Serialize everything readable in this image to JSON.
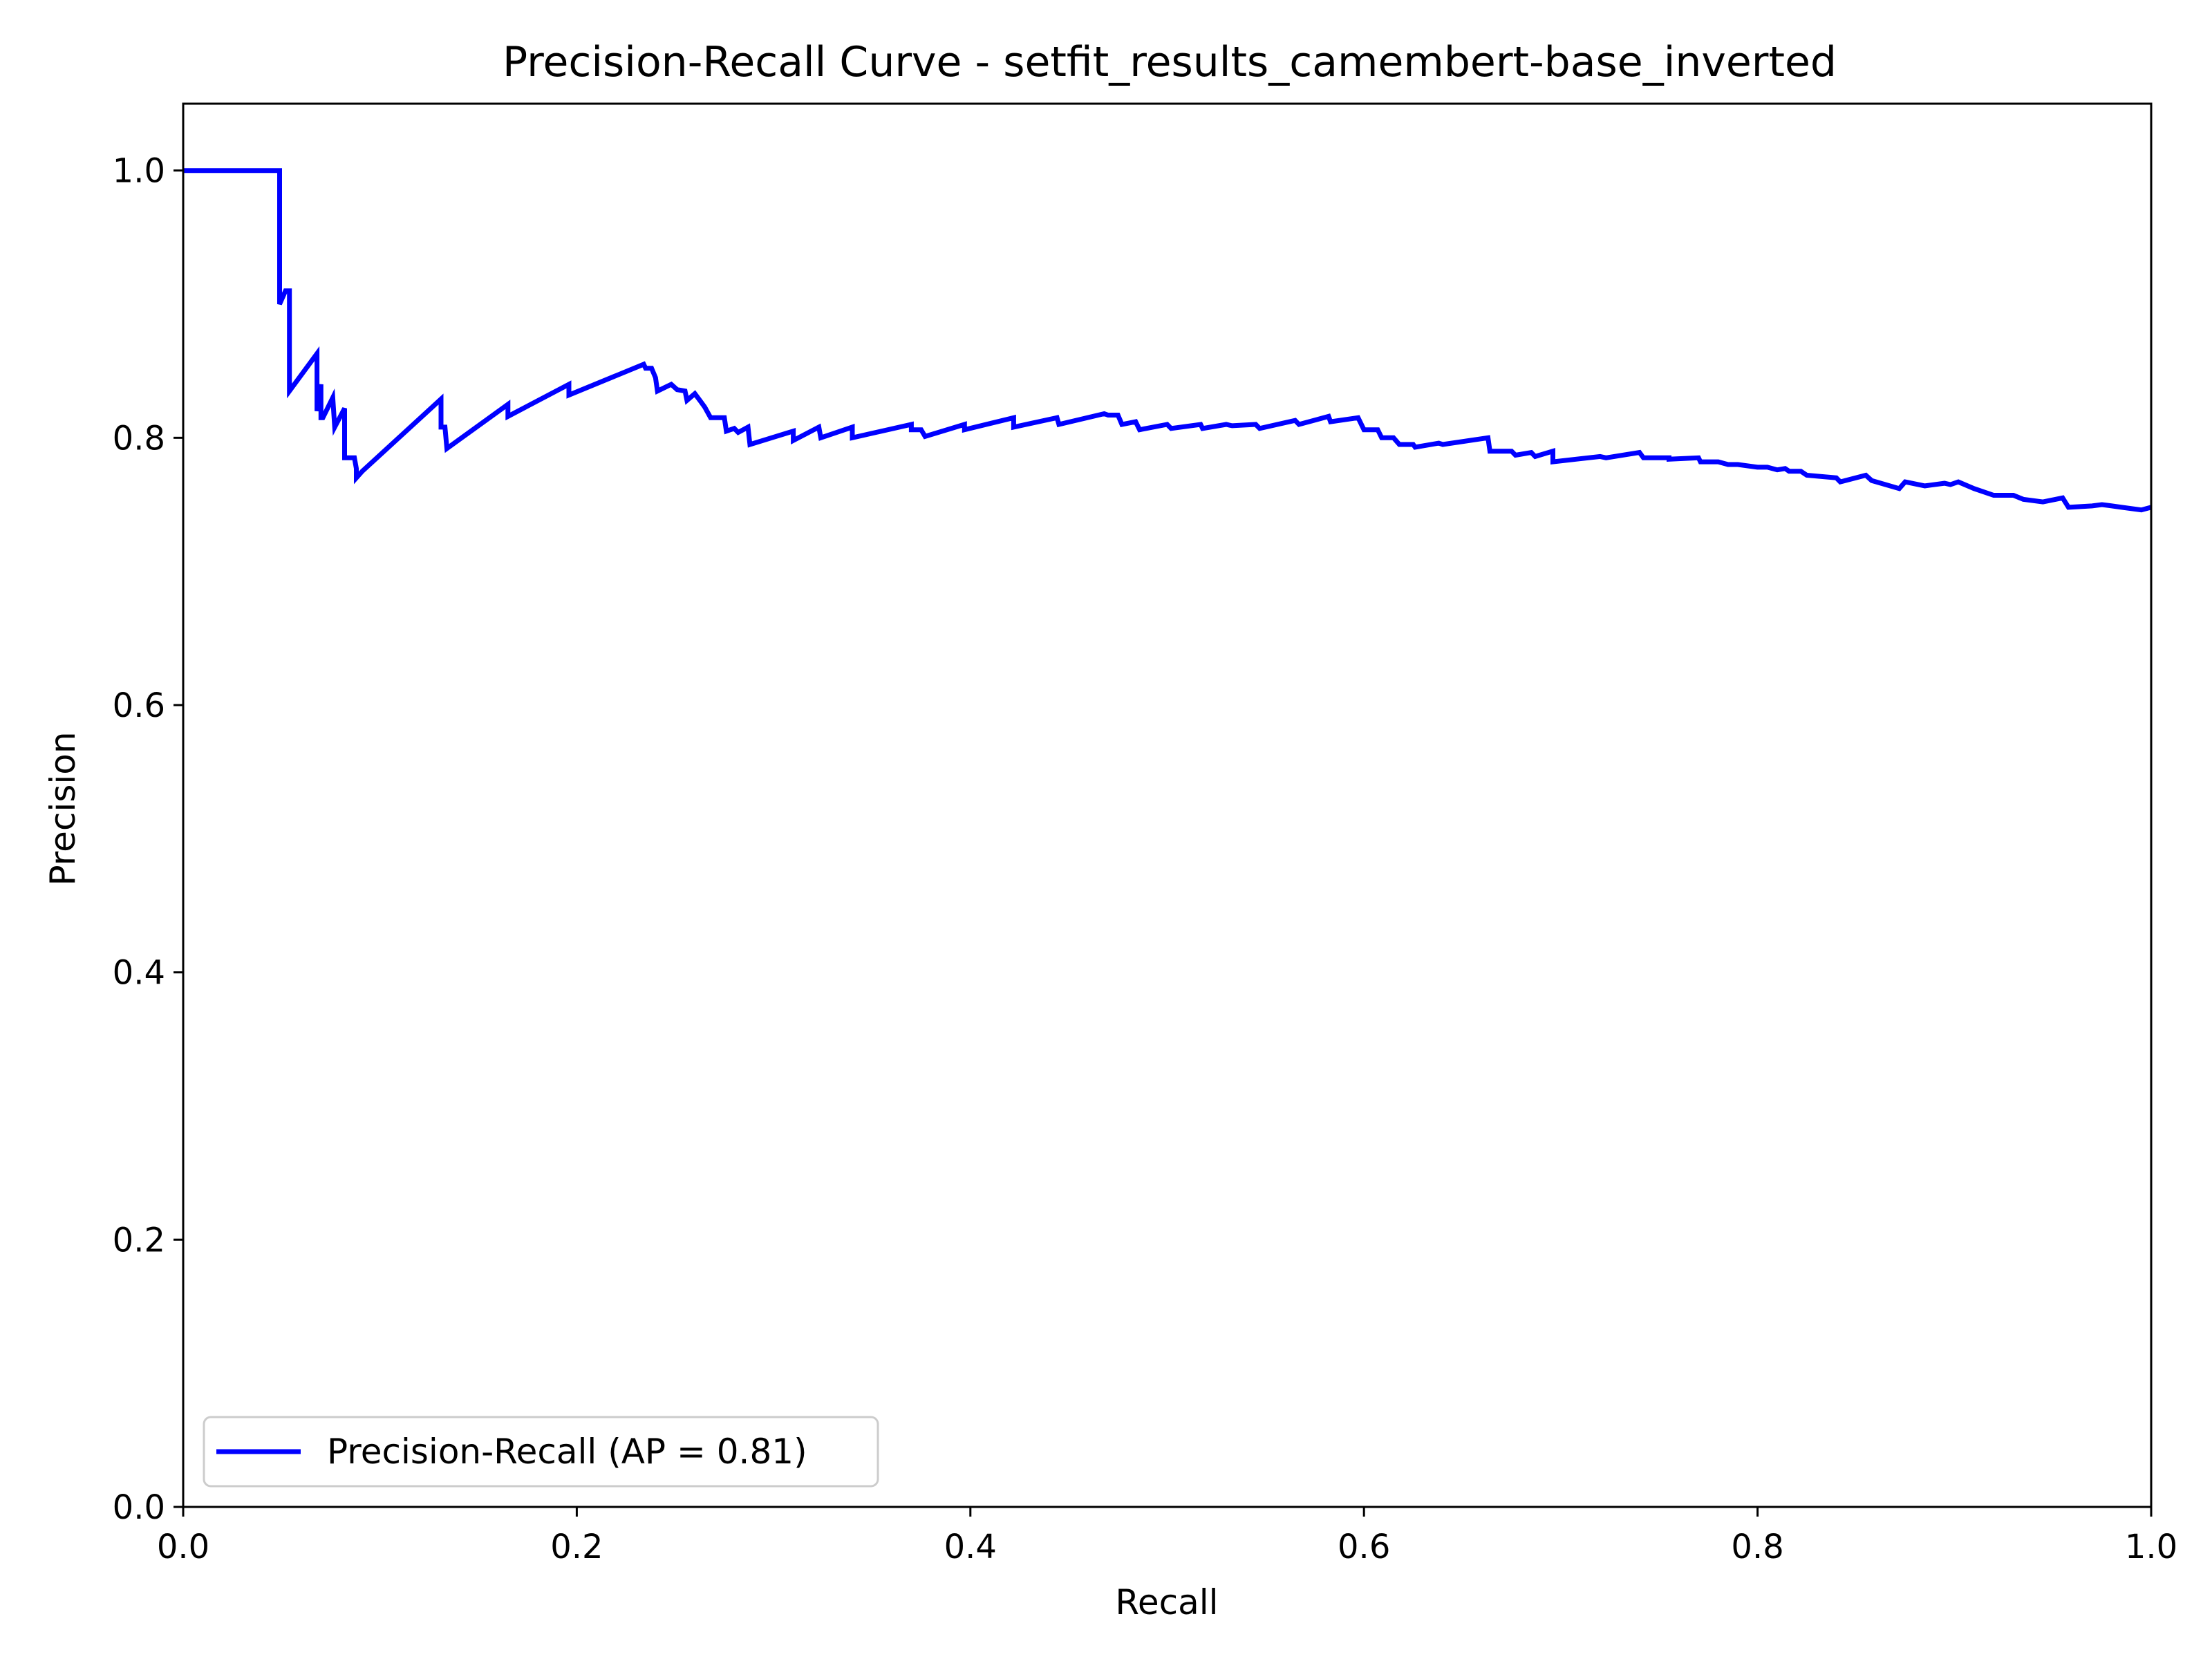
{
  "chart_data": {
    "type": "line",
    "title": "Precision-Recall Curve - setfit_results_camembert-base_inverted",
    "xlabel": "Recall",
    "ylabel": "Precision",
    "xlim": [
      0.0,
      1.0
    ],
    "ylim": [
      0.0,
      1.05
    ],
    "x_ticks": [
      0.0,
      0.2,
      0.4,
      0.6,
      0.8,
      1.0
    ],
    "x_tick_labels": [
      "0.0",
      "0.2",
      "0.4",
      "0.6",
      "0.8",
      "1.0"
    ],
    "y_ticks": [
      0.0,
      0.2,
      0.4,
      0.6,
      0.8,
      1.0
    ],
    "y_tick_labels": [
      "0.0",
      "0.2",
      "0.4",
      "0.6",
      "0.8",
      "1.0"
    ],
    "grid": false,
    "legend_position": "lower-left",
    "series": [
      {
        "name": "Precision-Recall (AP = 0.81)",
        "color": "#0000ff",
        "x": [
          0.0,
          0.049,
          0.049,
          0.052,
          0.054,
          0.054,
          0.068,
          0.068,
          0.07,
          0.07,
          0.071,
          0.076,
          0.077,
          0.082,
          0.082,
          0.087,
          0.088,
          0.088,
          0.091,
          0.131,
          0.131,
          0.133,
          0.134,
          0.165,
          0.165,
          0.196,
          0.196,
          0.234,
          0.235,
          0.238,
          0.24,
          0.241,
          0.248,
          0.251,
          0.255,
          0.256,
          0.26,
          0.263,
          0.265,
          0.268,
          0.275,
          0.276,
          0.28,
          0.282,
          0.287,
          0.288,
          0.31,
          0.31,
          0.323,
          0.324,
          0.34,
          0.34,
          0.37,
          0.37,
          0.375,
          0.377,
          0.397,
          0.397,
          0.422,
          0.422,
          0.444,
          0.445,
          0.468,
          0.47,
          0.475,
          0.477,
          0.484,
          0.486,
          0.5,
          0.502,
          0.517,
          0.518,
          0.53,
          0.533,
          0.545,
          0.547,
          0.565,
          0.567,
          0.582,
          0.583,
          0.597,
          0.6,
          0.607,
          0.609,
          0.615,
          0.618,
          0.625,
          0.626,
          0.638,
          0.64,
          0.663,
          0.664,
          0.675,
          0.677,
          0.685,
          0.687,
          0.696,
          0.696,
          0.72,
          0.723,
          0.74,
          0.742,
          0.755,
          0.755,
          0.77,
          0.771,
          0.78,
          0.785,
          0.79,
          0.8,
          0.805,
          0.81,
          0.814,
          0.816,
          0.822,
          0.825,
          0.84,
          0.842,
          0.855,
          0.858,
          0.872,
          0.875,
          0.885,
          0.895,
          0.898,
          0.902,
          0.91,
          0.92,
          0.93,
          0.935,
          0.945,
          0.955,
          0.958,
          0.97,
          0.975,
          0.98,
          0.985,
          0.995,
          1.0
        ],
        "y": [
          1.0,
          1.0,
          0.9,
          0.91,
          0.91,
          0.835,
          0.863,
          0.82,
          0.84,
          0.815,
          0.815,
          0.83,
          0.808,
          0.822,
          0.785,
          0.785,
          0.777,
          0.77,
          0.775,
          0.829,
          0.808,
          0.808,
          0.792,
          0.825,
          0.816,
          0.84,
          0.832,
          0.855,
          0.852,
          0.852,
          0.845,
          0.835,
          0.84,
          0.836,
          0.835,
          0.828,
          0.833,
          0.827,
          0.823,
          0.815,
          0.815,
          0.805,
          0.807,
          0.804,
          0.808,
          0.795,
          0.805,
          0.798,
          0.808,
          0.8,
          0.808,
          0.8,
          0.81,
          0.806,
          0.806,
          0.801,
          0.81,
          0.806,
          0.815,
          0.808,
          0.815,
          0.81,
          0.818,
          0.817,
          0.817,
          0.81,
          0.812,
          0.806,
          0.81,
          0.807,
          0.81,
          0.807,
          0.81,
          0.809,
          0.81,
          0.807,
          0.813,
          0.81,
          0.816,
          0.812,
          0.815,
          0.806,
          0.806,
          0.8,
          0.8,
          0.795,
          0.795,
          0.793,
          0.796,
          0.795,
          0.8,
          0.79,
          0.79,
          0.787,
          0.789,
          0.786,
          0.79,
          0.782,
          0.786,
          0.785,
          0.789,
          0.785,
          0.785,
          0.784,
          0.785,
          0.782,
          0.782,
          0.78,
          0.78,
          0.778,
          0.778,
          0.776,
          0.777,
          0.775,
          0.775,
          0.772,
          0.77,
          0.767,
          0.772,
          0.768,
          0.762,
          0.767,
          0.764,
          0.766,
          0.765,
          0.767,
          0.762,
          0.757,
          0.757,
          0.754,
          0.752,
          0.755,
          0.748,
          0.749,
          0.75,
          0.749,
          0.748,
          0.746,
          0.748
        ]
      }
    ]
  }
}
